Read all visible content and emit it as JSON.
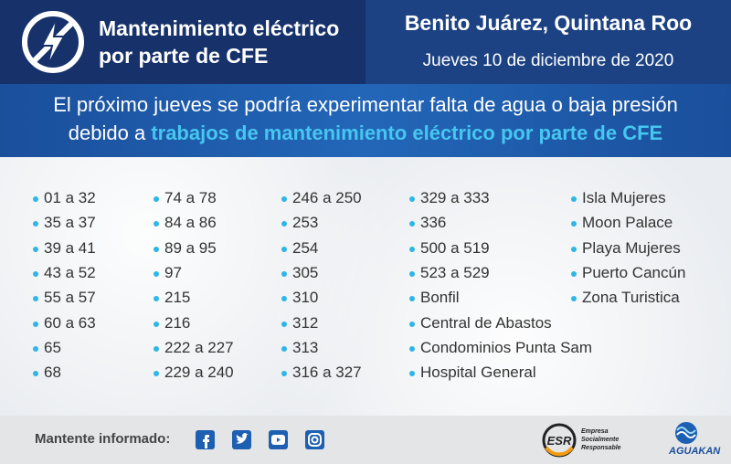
{
  "header": {
    "title_line1": "Mantenimiento eléctrico",
    "title_line2": "por parte de CFE",
    "location": "Benito Juárez, Quintana Roo",
    "date": "Jueves 10 de diciembre de 2020"
  },
  "notice": {
    "line1": "El próximo jueves se podría experimentar falta de agua o baja presión",
    "line2_prefix": "debido a",
    "highlight": "trabajos de mantenimiento eléctrico por parte de CFE"
  },
  "columns": [
    [
      "01 a 32",
      "35 a 37",
      "39 a 41",
      "43 a 52",
      "55 a 57",
      "60 a 63",
      "65",
      "68"
    ],
    [
      "74 a 78",
      "84 a 86",
      "89 a 95",
      "97",
      "215",
      "216",
      "222 a 227",
      "229 a 240"
    ],
    [
      "246 a 250",
      "253",
      "254",
      "305",
      "310",
      "312",
      "313",
      "316 a 327"
    ],
    [
      "329 a 333",
      "336",
      "500 a 519",
      "523 a 529",
      "Bonfil",
      "Central de Abastos",
      "Condominios Punta Sam",
      "Hospital General"
    ],
    [
      "Isla Mujeres",
      "Moon Palace",
      "Playa Mujeres",
      "Puerto Cancún",
      "Zona Turistica"
    ]
  ],
  "footer": {
    "follow": "Mantente informado:",
    "esr_mark": "ESR",
    "esr_lines": [
      "Empresa",
      "Socialmente",
      "Responsable"
    ],
    "brand": "AGUAKAN"
  }
}
